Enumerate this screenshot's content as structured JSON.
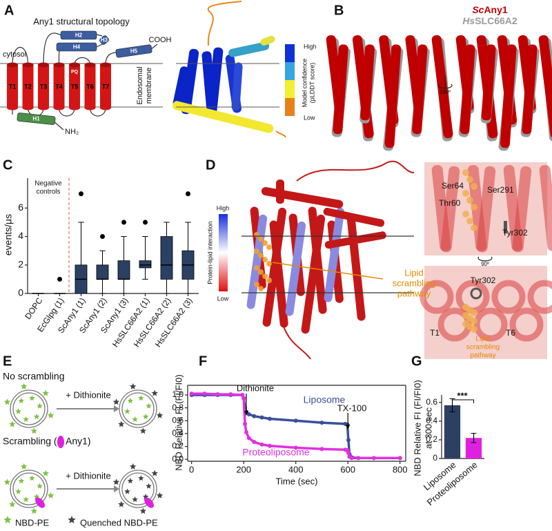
{
  "panel_labels": [
    "A",
    "B",
    "C",
    "D",
    "E",
    "F",
    "G"
  ],
  "panel_A": {
    "title": "Any1 structural topology",
    "cytosol": "cytosol",
    "c_terminus": "COOH",
    "n_terminus": "NH₂",
    "tm_helices": [
      "T1",
      "T2",
      "T3",
      "T4",
      "T5",
      "T6",
      "T7"
    ],
    "motif": "PQ",
    "helices": [
      "H1",
      "H2",
      "H3",
      "H4",
      "H5"
    ],
    "membrane_label": [
      "Endosomal",
      "membrane"
    ],
    "confidence_high": "High",
    "confidence_low": "Low",
    "confidence_label": [
      "Model confidence",
      "(pLDDT score)"
    ]
  },
  "panel_B": {
    "legend": [
      {
        "species": "Sc",
        "protein": "Any1",
        "color": "#c00000"
      },
      {
        "species": "Hs",
        "protein": "SLC66A2",
        "color": "#9a9a9a"
      }
    ],
    "rotation": "180º"
  },
  "panel_D": {
    "interaction_high": "High",
    "interaction_low": "Low",
    "interaction_label": "Protein-lipid interaction",
    "pathway_label": [
      "Lipid",
      "scrambling",
      "pathway"
    ],
    "residues_top": [
      "Ser64",
      "Ser291",
      "Thr60",
      "Tyr302"
    ],
    "rotation": "90º",
    "residues_bottom": [
      "Tyr302",
      "T1",
      "T6"
    ],
    "pathway_label_bottom": [
      "Lipid",
      "scrambling",
      "pathway"
    ]
  },
  "panel_E": {
    "no_scrambling": "No scrambling",
    "scrambling": "Scrambling (",
    "protein": "Any1)",
    "reagent": [
      "+ Dithionite",
      "+ Dithionite"
    ],
    "legend": [
      "NBD-PE",
      "Quenched NBD-PE"
    ]
  },
  "chart_data": [
    {
      "type": "box",
      "ylabel": "events/μs",
      "annotation": [
        "Negative",
        "controls"
      ],
      "categories": [
        "DOPC",
        "EcGlpg (1)",
        "ScAny1 (1)",
        "ScAny1 (2)",
        "ScAny1 (3)",
        "HsSLC66A2 (1)",
        "HsSLC66A2 (2)",
        "HsSLC66A2 (3)"
      ],
      "boxes": [
        {
          "min": 0,
          "q1": 0,
          "median": 0,
          "q3": 0,
          "max": 0,
          "outliers": []
        },
        {
          "min": 0,
          "q1": 0,
          "median": 0,
          "q3": 0,
          "max": 0,
          "outliers": [
            1
          ]
        },
        {
          "min": 0,
          "q1": 0,
          "median": 1,
          "q3": 2,
          "max": 5,
          "outliers": [
            7
          ]
        },
        {
          "min": 0,
          "q1": 1,
          "median": 1,
          "q3": 2,
          "max": 3,
          "outliers": [
            4
          ]
        },
        {
          "min": 0,
          "q1": 1,
          "median": 1,
          "q3": 2.3,
          "max": 4,
          "outliers": [
            5
          ]
        },
        {
          "min": 1,
          "q1": 1.8,
          "median": 2,
          "q3": 2.3,
          "max": 4,
          "outliers": [
            5
          ]
        },
        {
          "min": 0,
          "q1": 1,
          "median": 2,
          "q3": 4,
          "max": 5,
          "outliers": []
        },
        {
          "min": 0,
          "q1": 1,
          "median": 2,
          "q3": 3,
          "max": 5,
          "outliers": [
            7
          ]
        }
      ],
      "color": "#2b4163",
      "ylim": [
        0,
        8.1
      ],
      "yticks": [
        0,
        2,
        4,
        6
      ]
    },
    {
      "type": "line",
      "xlabel": "Time (sec)",
      "ylabel": "NBD Relative FI (FI/FI0)",
      "annotations": [
        "Dithionite",
        "TX-100"
      ],
      "x": [
        0,
        50,
        100,
        150,
        195,
        200,
        205,
        210,
        220,
        240,
        270,
        300,
        400,
        500,
        590,
        598,
        602,
        606,
        615,
        640,
        700,
        800
      ],
      "series": [
        {
          "name": "Liposome",
          "color": "#3a4f9c",
          "values": [
            1.0,
            1.0,
            1.0,
            1.0,
            1.0,
            0.95,
            0.8,
            0.74,
            0.7,
            0.67,
            0.65,
            0.63,
            0.6,
            0.57,
            0.55,
            0.54,
            0.3,
            0.08,
            0.03,
            0.02,
            0.02,
            0.02
          ]
        },
        {
          "name": "Proteoliposome",
          "color": "#e030e0",
          "values": [
            1.02,
            1.02,
            1.01,
            1.01,
            1.0,
            0.95,
            0.55,
            0.42,
            0.33,
            0.27,
            0.23,
            0.21,
            0.18,
            0.16,
            0.15,
            0.14,
            0.1,
            0.04,
            0.02,
            0.02,
            0.02,
            0.02
          ]
        }
      ],
      "xlim": [
        -15,
        822
      ],
      "xticks": [
        0,
        200,
        400,
        600,
        800
      ],
      "ylim": [
        -0.03,
        1.15
      ],
      "yticks": [
        {
          "value": 0,
          "label": "0.0"
        },
        0.2,
        0.4,
        0.6,
        0.8,
        {
          "value": 1,
          "label": "1.0"
        }
      ]
    },
    {
      "type": "bar",
      "ylabel": [
        "NBD Relative FI (FI/FI0)",
        "at 300 sec"
      ],
      "annotation": "***",
      "categories": [
        "Liposome",
        "Proteoliposome"
      ],
      "values": [
        0.57,
        0.22
      ],
      "errors": [
        0.07,
        0.05
      ],
      "colors": [
        "#2b4163",
        "#e020e0"
      ],
      "ylim": [
        0,
        0.68
      ],
      "yticks": [
        0,
        0.2,
        0.4,
        0.6
      ]
    }
  ]
}
